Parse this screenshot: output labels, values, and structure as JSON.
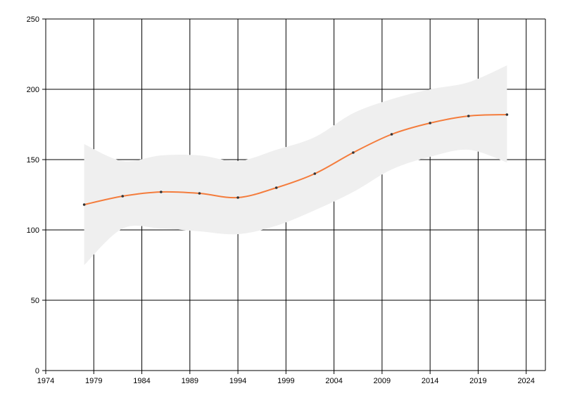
{
  "chart_data": {
    "type": "line",
    "title": "",
    "xlabel": "",
    "ylabel": "",
    "xlim": [
      1974,
      2026
    ],
    "ylim": [
      0,
      250
    ],
    "x_ticks": [
      "1974",
      "1979",
      "1984",
      "1989",
      "1994",
      "1999",
      "2004",
      "2009",
      "2014",
      "2019",
      "2024"
    ],
    "y_ticks": [
      "0",
      "50",
      "100",
      "150",
      "200",
      "250"
    ],
    "grid": true,
    "legend": "none",
    "series": [
      {
        "x": [
          1978,
          1982,
          1986,
          1990,
          1994,
          1998,
          2002,
          2006,
          2010,
          2014,
          2018,
          2022
        ],
        "y": [
          118,
          124,
          127,
          126,
          123,
          130,
          140,
          155,
          168,
          176,
          181,
          182
        ],
        "color": "#f47c3c",
        "band_upper": [
          161,
          149,
          153,
          153,
          149,
          157,
          166,
          183,
          193,
          200,
          205,
          217
        ],
        "band_lower": [
          75,
          101,
          101,
          99,
          97,
          103,
          114,
          127,
          143,
          152,
          157,
          148
        ],
        "band_color": "#efefef"
      }
    ]
  }
}
